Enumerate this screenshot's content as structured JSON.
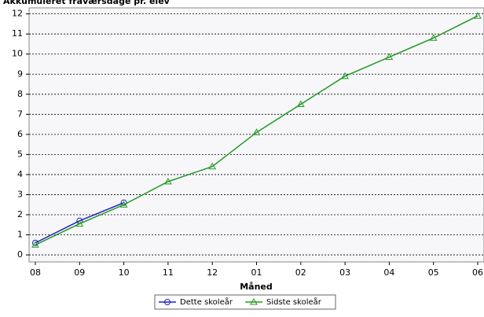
{
  "chart_data": {
    "type": "line",
    "title": "Akkumuleret fraværsdage pr. elev",
    "x_label": "Måned",
    "categories": [
      "08",
      "09",
      "10",
      "11",
      "12",
      "01",
      "02",
      "03",
      "04",
      "05",
      "06"
    ],
    "series": [
      {
        "name": "Dette skoleår",
        "color": "#1f1fbf",
        "marker": "circle",
        "values": [
          0.6,
          1.7,
          2.6,
          null,
          null,
          null,
          null,
          null,
          null,
          null,
          null
        ]
      },
      {
        "name": "Sidste skoleår",
        "color": "#229922",
        "marker": "triangle",
        "values": [
          0.5,
          1.55,
          2.5,
          3.65,
          4.4,
          6.1,
          7.5,
          8.9,
          9.85,
          10.8,
          11.9
        ]
      }
    ],
    "ylim": [
      -0.35,
      12.3
    ],
    "yticks": [
      0,
      1,
      2,
      3,
      4,
      5,
      6,
      7,
      8,
      9,
      10,
      11,
      12
    ],
    "grid": true
  }
}
